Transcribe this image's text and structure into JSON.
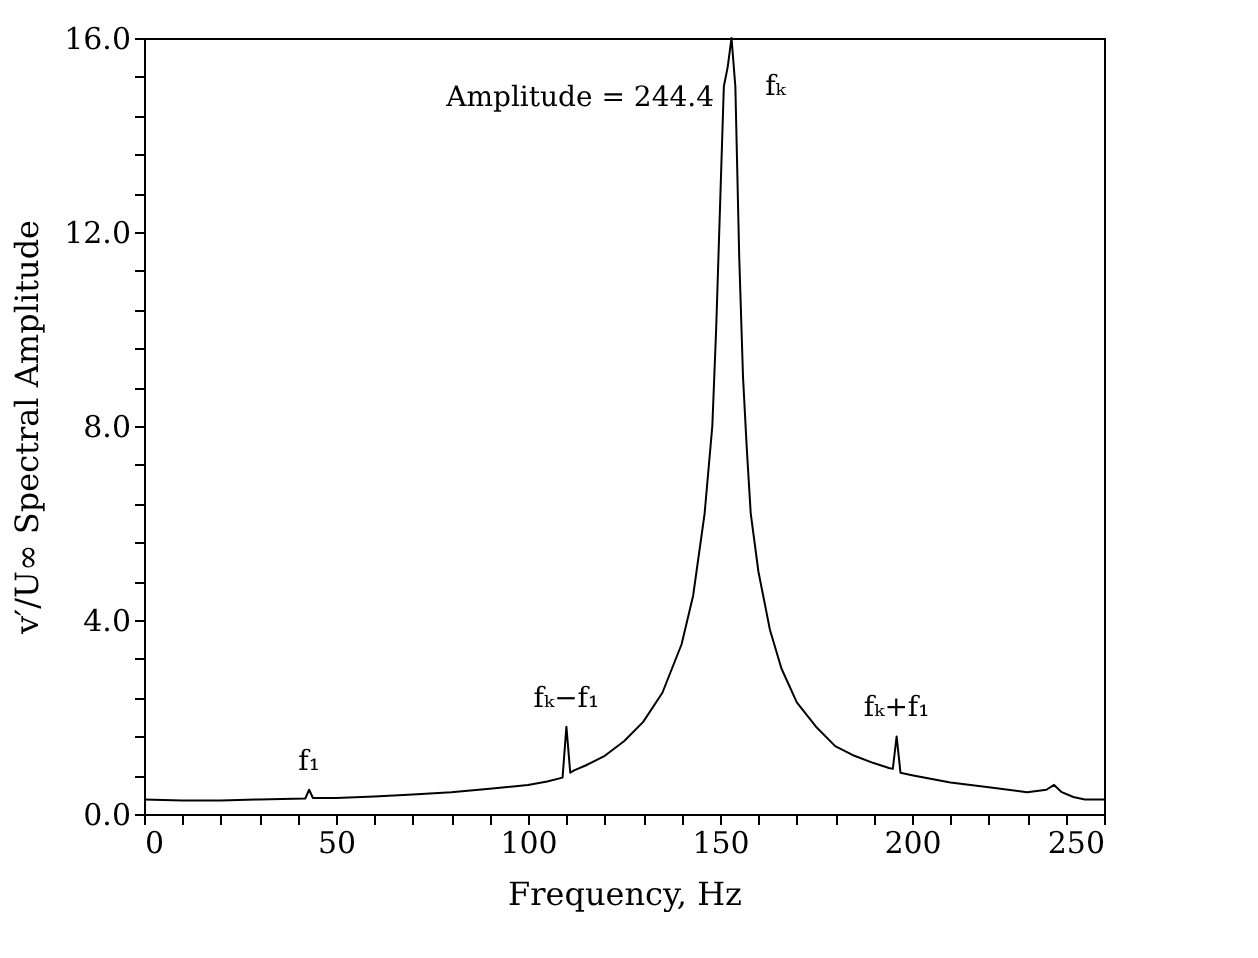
{
  "chart_data": {
    "type": "line",
    "xlabel": "Frequency,  Hz",
    "ylabel": "v′/U∞  Spectral  Amplitude",
    "x": [
      0,
      10,
      20,
      30,
      42,
      43,
      44,
      50,
      60,
      70,
      80,
      90,
      100,
      105,
      109,
      110,
      111,
      112,
      115,
      120,
      125,
      130,
      135,
      140,
      143,
      146,
      148,
      149,
      150,
      151,
      152,
      153,
      154,
      155,
      156,
      157,
      158,
      160,
      163,
      166,
      170,
      175,
      180,
      185,
      190,
      194,
      195,
      196,
      197,
      200,
      210,
      220,
      230,
      235,
      237,
      239,
      242,
      245,
      250
    ],
    "series": [
      {
        "color": "#000000",
        "values": [
          0.3,
          0.28,
          0.28,
          0.3,
          0.32,
          0.5,
          0.33,
          0.33,
          0.36,
          0.4,
          0.45,
          0.52,
          0.6,
          0.67,
          0.75,
          1.8,
          0.85,
          0.9,
          1.0,
          1.2,
          1.5,
          1.9,
          2.5,
          3.5,
          4.5,
          6.2,
          8.0,
          10.0,
          12.5,
          15.0,
          15.4,
          16.0,
          15.0,
          11.5,
          9.0,
          7.5,
          6.2,
          5.0,
          3.8,
          3.0,
          2.3,
          1.8,
          1.4,
          1.2,
          1.05,
          0.95,
          0.93,
          1.6,
          0.85,
          0.8,
          0.65,
          0.55,
          0.45,
          0.5,
          0.6,
          0.45,
          0.35,
          0.3,
          0.3
        ]
      }
    ],
    "xlim": [
      0,
      250
    ],
    "ylim": [
      0,
      16
    ],
    "xticks": [
      0,
      {
        "value": 10,
        "label": null
      },
      {
        "value": 20,
        "label": null
      },
      {
        "value": 30,
        "label": null
      },
      {
        "value": 40,
        "label": null
      },
      50,
      {
        "value": 60,
        "label": null
      },
      {
        "value": 70,
        "label": null
      },
      {
        "value": 80,
        "label": null
      },
      {
        "value": 90,
        "label": null
      },
      100,
      {
        "value": 110,
        "label": null
      },
      {
        "value": 120,
        "label": null
      },
      {
        "value": 130,
        "label": null
      },
      {
        "value": 140,
        "label": null
      },
      150,
      {
        "value": 160,
        "label": null
      },
      {
        "value": 170,
        "label": null
      },
      {
        "value": 180,
        "label": null
      },
      {
        "value": 190,
        "label": null
      },
      200,
      {
        "value": 210,
        "label": null
      },
      {
        "value": 220,
        "label": null
      },
      {
        "value": 230,
        "label": null
      },
      {
        "value": 240,
        "label": null
      },
      250
    ],
    "yticks": [
      {
        "value": 0,
        "label": "0.0"
      },
      {
        "value": 0.8,
        "label": null
      },
      {
        "value": 1.6,
        "label": null
      },
      {
        "value": 2.4,
        "label": null
      },
      {
        "value": 3.2,
        "label": null
      },
      {
        "value": 4,
        "label": "4.0"
      },
      {
        "value": 4.8,
        "label": null
      },
      {
        "value": 5.6,
        "label": null
      },
      {
        "value": 6.4,
        "label": null
      },
      {
        "value": 7.2,
        "label": null
      },
      {
        "value": 8,
        "label": "8.0"
      },
      {
        "value": 8.8,
        "label": null
      },
      {
        "value": 9.6,
        "label": null
      },
      {
        "value": 10.4,
        "label": null
      },
      {
        "value": 11.2,
        "label": null
      },
      {
        "value": 12,
        "label": "12.0"
      },
      {
        "value": 12.8,
        "label": null
      },
      {
        "value": 13.6,
        "label": null
      },
      {
        "value": 14.4,
        "label": null
      },
      {
        "value": 15.2,
        "label": null
      },
      {
        "value": 16,
        "label": "16.0"
      }
    ],
    "annotations": [
      "Amplitude = 244.4",
      {
        "text": "f₁",
        "x": 43,
        "y": 0.5
      },
      {
        "text": "fₖ−f₁",
        "x": 110,
        "y": 1.8
      },
      {
        "text": "fₖ",
        "x": 153,
        "y": 15.4
      },
      {
        "text": "fₖ+f₁",
        "x": 196,
        "y": 1.6
      }
    ],
    "grid": false,
    "legend": false,
    "marker": "none",
    "line_style": "solid"
  }
}
